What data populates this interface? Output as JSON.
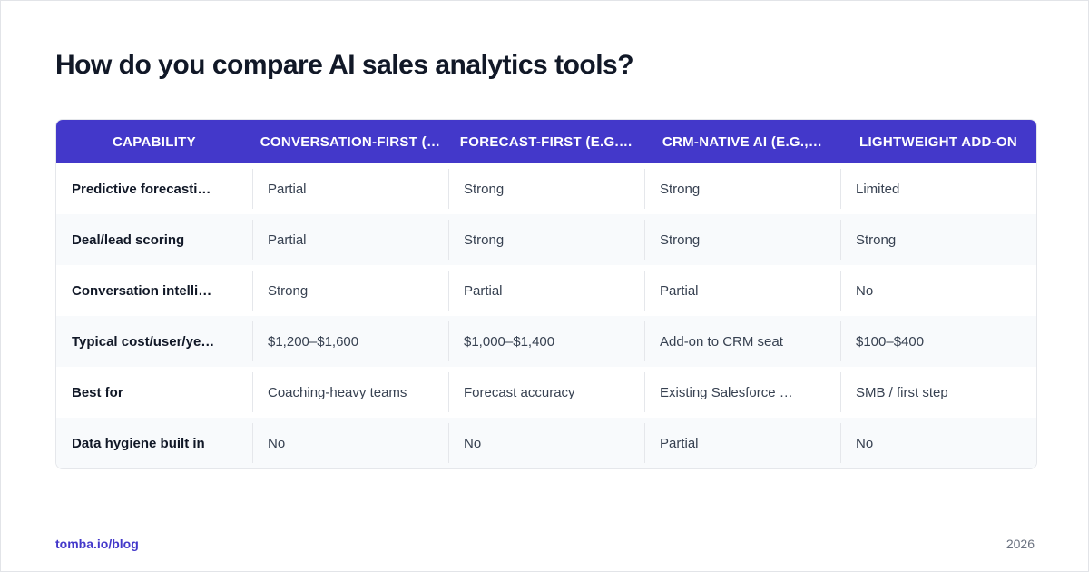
{
  "header": {
    "title": "How do you compare AI sales analytics tools?"
  },
  "table": {
    "columns": [
      "CAPABILITY",
      "CONVERSATION-FIRST (…",
      "FORECAST-FIRST (E.G.…",
      "CRM-NATIVE AI (E.G.,…",
      "LIGHTWEIGHT ADD-ON"
    ],
    "rows": [
      [
        "Predictive forecasti…",
        "Partial",
        "Strong",
        "Strong",
        "Limited"
      ],
      [
        "Deal/lead scoring",
        "Partial",
        "Strong",
        "Strong",
        "Strong"
      ],
      [
        "Conversation intelli…",
        "Strong",
        "Partial",
        "Partial",
        "No"
      ],
      [
        "Typical cost/user/ye…",
        "$1,200–$1,600",
        "$1,000–$1,400",
        "Add-on to CRM seat",
        "$100–$400"
      ],
      [
        "Best for",
        "Coaching-heavy teams",
        "Forecast accuracy",
        "Existing Salesforce …",
        "SMB / first step"
      ],
      [
        "Data hygiene built in",
        "No",
        "No",
        "Partial",
        "No"
      ]
    ]
  },
  "footer": {
    "source": "tomba.io/blog",
    "year": "2026"
  }
}
